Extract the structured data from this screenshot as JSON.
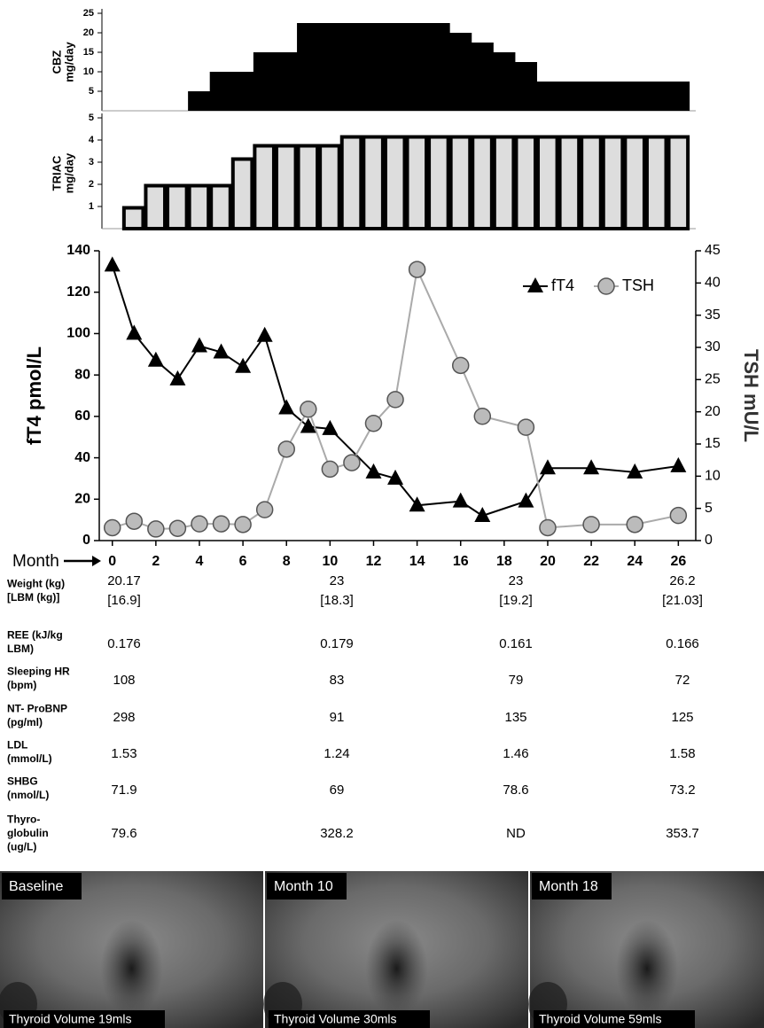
{
  "chart_data": [
    {
      "type": "bar",
      "ylabel": [
        "CBZ",
        "mg/day"
      ],
      "color": "#000000",
      "x": [
        0,
        1,
        2,
        3,
        4,
        5,
        6,
        7,
        8,
        9,
        10,
        11,
        12,
        13,
        14,
        15,
        16,
        17,
        18,
        19,
        20,
        21,
        22,
        23,
        24,
        25,
        26
      ],
      "values": [
        0,
        0,
        0,
        0,
        5,
        10,
        10,
        15,
        15,
        22.5,
        22.5,
        22.5,
        22.5,
        22.5,
        22.5,
        22.5,
        20,
        17.5,
        15,
        12.5,
        7.5,
        7.5,
        7.5,
        7.5,
        7.5,
        7.5,
        7.5
      ],
      "xlim": [
        -0.45,
        26.8
      ],
      "ylim": [
        0,
        25
      ],
      "yticks": [
        5,
        10,
        15,
        20,
        25
      ]
    },
    {
      "type": "bar",
      "ylabel": [
        "TRIAC",
        "mg/day"
      ],
      "color": "#dddddd",
      "x": [
        1,
        2,
        3,
        4,
        5,
        6,
        7,
        8,
        9,
        10,
        11,
        12,
        13,
        14,
        15,
        16,
        17,
        18,
        19,
        20,
        21,
        22,
        23,
        24,
        25,
        26
      ],
      "values": [
        1,
        2,
        2,
        2,
        2,
        3.2,
        3.8,
        3.8,
        3.8,
        3.8,
        4.2,
        4.2,
        4.2,
        4.2,
        4.2,
        4.2,
        4.2,
        4.2,
        4.2,
        4.2,
        4.2,
        4.2,
        4.2,
        4.2,
        4.2,
        4.2
      ],
      "xlim": [
        -0.45,
        26.8
      ],
      "ylim": [
        0,
        5
      ],
      "yticks": [
        1,
        2,
        3,
        4,
        5
      ]
    },
    {
      "type": "line",
      "xlabel": "Month",
      "ylabel": "fT4 pmol/L",
      "y2label": "TSH mU/L",
      "legend": "upper right",
      "series": [
        {
          "name": "fT4",
          "color": "#000000",
          "marker": "triangle",
          "x": [
            0,
            1,
            2,
            3,
            4,
            5,
            6,
            7,
            8,
            9,
            10,
            12,
            13,
            14,
            16,
            17,
            19,
            20,
            22,
            24,
            26
          ],
          "values": [
            133,
            100,
            87,
            78,
            94,
            91,
            84,
            99,
            64,
            55,
            54,
            33,
            30,
            17,
            19,
            12,
            19,
            35,
            35,
            33,
            36
          ]
        },
        {
          "name": "TSH",
          "color": "#aaaaaa",
          "marker": "circle",
          "axis": "y2",
          "x": [
            0,
            1,
            2,
            3,
            4,
            5,
            6,
            7,
            8,
            9,
            10,
            11,
            12,
            13,
            14,
            16,
            17,
            19,
            20,
            22,
            24,
            26
          ],
          "values": [
            2,
            3,
            1.8,
            1.9,
            2.6,
            2.6,
            2.5,
            4.8,
            14.2,
            20.4,
            11.1,
            12.1,
            18.2,
            21.9,
            42.1,
            27.2,
            19.3,
            17.6,
            2,
            2.5,
            2.5,
            3.9
          ]
        }
      ],
      "xlim": [
        -0.6,
        26.8
      ],
      "xticks": [
        0,
        2,
        4,
        6,
        8,
        10,
        12,
        14,
        16,
        18,
        20,
        22,
        24,
        26
      ],
      "ylim": [
        0,
        140
      ],
      "yticks": [
        0,
        20,
        40,
        60,
        80,
        100,
        120,
        140
      ],
      "y2lim": [
        0,
        45
      ],
      "y2ticks": [
        0,
        5,
        10,
        15,
        20,
        25,
        30,
        35,
        40,
        45
      ]
    }
  ],
  "table": {
    "rows": [
      {
        "label": [
          "Weight (kg)",
          "[LBM (kg)]"
        ],
        "cells": [
          [
            "20.17",
            "[16.9]"
          ],
          [
            "23",
            "[18.3]"
          ],
          [
            "23",
            "[19.2]"
          ],
          [
            "26.2",
            "[21.03]"
          ]
        ]
      },
      {
        "label": [
          "REE (kJ/kg",
          "LBM)"
        ],
        "cells": [
          [
            "0.176"
          ],
          [
            "0.179"
          ],
          [
            "0.161"
          ],
          [
            "0.166"
          ]
        ]
      },
      {
        "label": [
          "Sleeping HR",
          "(bpm)"
        ],
        "cells": [
          [
            "108"
          ],
          [
            "83"
          ],
          [
            "79"
          ],
          [
            "72"
          ]
        ]
      },
      {
        "label": [
          "NT- ProBNP",
          "(pg/ml)"
        ],
        "cells": [
          [
            "298"
          ],
          [
            "91"
          ],
          [
            "135"
          ],
          [
            "125"
          ]
        ]
      },
      {
        "label": [
          "LDL",
          "(mmol/L)"
        ],
        "cells": [
          [
            "1.53"
          ],
          [
            "1.24"
          ],
          [
            "1.46"
          ],
          [
            "1.58"
          ]
        ]
      },
      {
        "label": [
          "SHBG",
          "(nmol/L)"
        ],
        "cells": [
          [
            "71.9"
          ],
          [
            "69"
          ],
          [
            "78.6"
          ],
          [
            "73.2"
          ]
        ]
      },
      {
        "label": [
          "Thyro-",
          "globulin",
          "(ug/L)"
        ],
        "cells": [
          [
            "79.6"
          ],
          [
            "328.2"
          ],
          [
            "ND"
          ],
          [
            "353.7"
          ]
        ]
      }
    ]
  },
  "images": [
    {
      "label": "Baseline",
      "caption": "Thyroid Volume 19mls"
    },
    {
      "label": "Month 10",
      "caption": "Thyroid Volume 30mls"
    },
    {
      "label": "Month 18",
      "caption": "Thyroid Volume 59mls"
    }
  ]
}
